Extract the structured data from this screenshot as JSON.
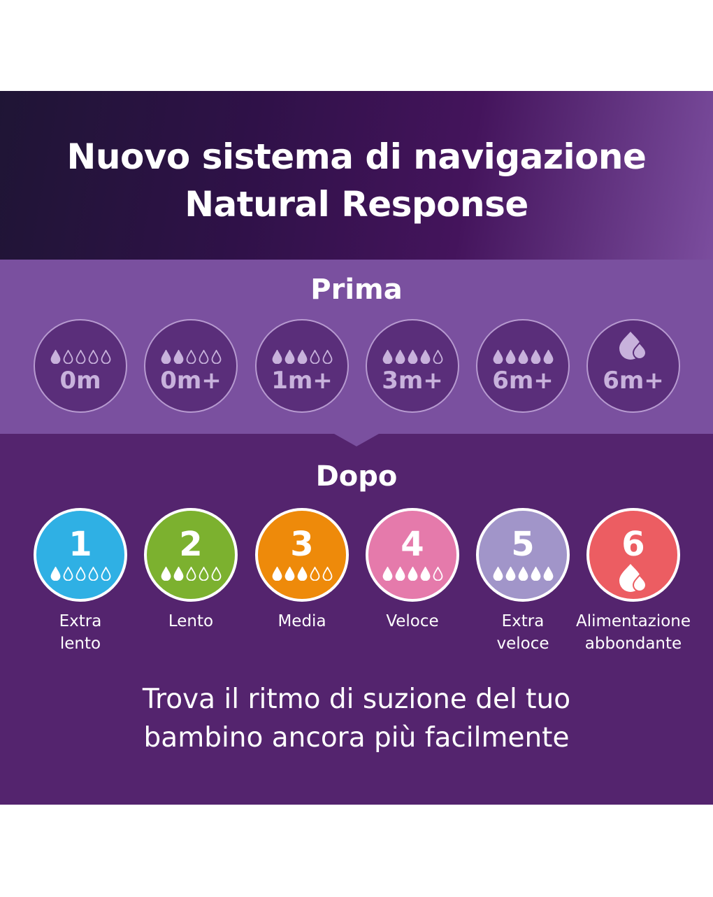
{
  "header": {
    "title_line1": "Nuovo sistema di navigazione",
    "title_line2": "Natural Response"
  },
  "prima": {
    "title": "Prima",
    "items": [
      {
        "label": "0m",
        "filled": 1,
        "icon": "drops"
      },
      {
        "label": "0m+",
        "filled": 2,
        "icon": "drops"
      },
      {
        "label": "1m+",
        "filled": 3,
        "icon": "drops"
      },
      {
        "label": "3m+",
        "filled": 4,
        "icon": "drops"
      },
      {
        "label": "6m+",
        "filled": 5,
        "icon": "drops"
      },
      {
        "label": "6m+",
        "filled": 0,
        "icon": "double-drop"
      }
    ]
  },
  "dopo": {
    "title": "Dopo",
    "items": [
      {
        "number": "1",
        "filled": 1,
        "icon": "drops",
        "color": "#2fb0e4",
        "caption1": "Extra",
        "caption2": "lento"
      },
      {
        "number": "2",
        "filled": 2,
        "icon": "drops",
        "color": "#7cb12f",
        "caption1": "Lento",
        "caption2": ""
      },
      {
        "number": "3",
        "filled": 3,
        "icon": "drops",
        "color": "#ee8a0a",
        "caption1": "Media",
        "caption2": ""
      },
      {
        "number": "4",
        "filled": 4,
        "icon": "drops",
        "color": "#e57aab",
        "caption1": "Veloce",
        "caption2": ""
      },
      {
        "number": "5",
        "filled": 5,
        "icon": "drops",
        "color": "#a195c9",
        "caption1": "Extra",
        "caption2": "veloce"
      },
      {
        "number": "6",
        "filled": 0,
        "icon": "double-drop",
        "color": "#ec5d62",
        "caption1": "Alimentazione",
        "caption2": "abbondante"
      }
    ]
  },
  "tagline": {
    "line1": "Trova il ritmo di suzione del tuo",
    "line2": "bambino ancora più facilmente"
  }
}
